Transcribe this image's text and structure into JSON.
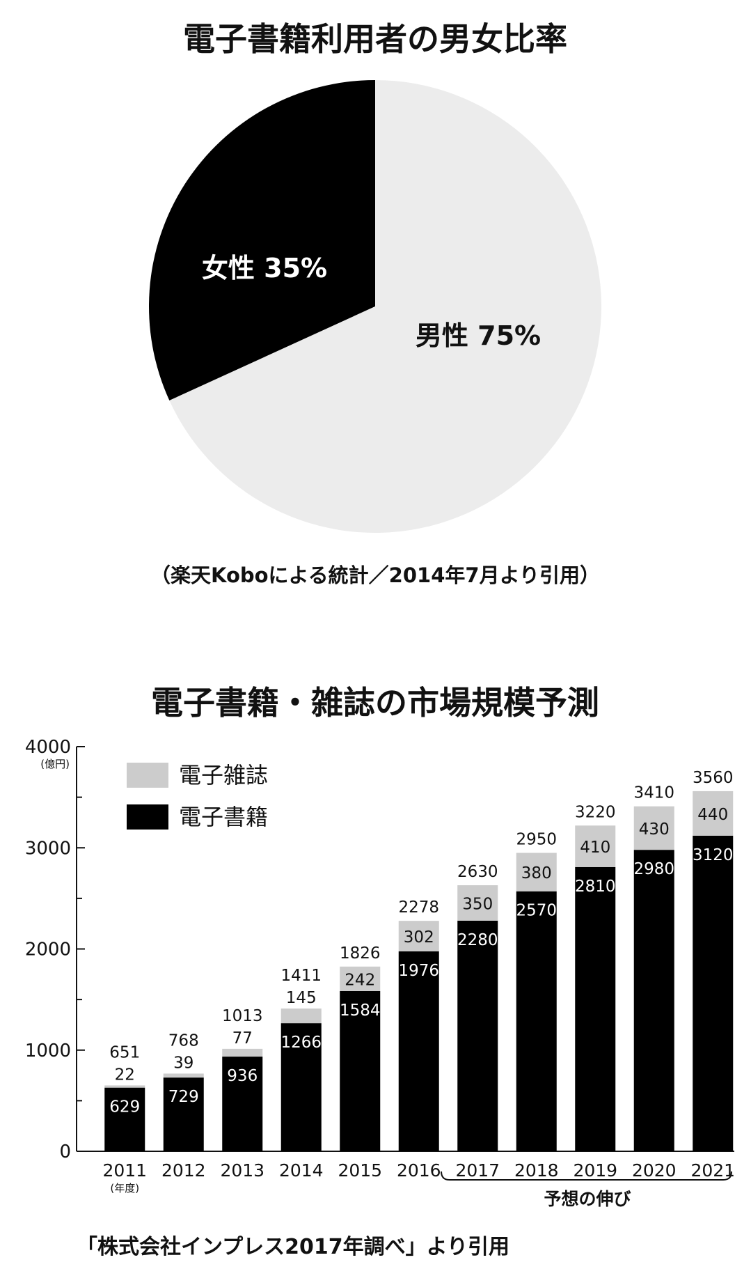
{
  "chart_data": [
    {
      "type": "pie",
      "title": "電子書籍利用者の男女比率",
      "slices": [
        {
          "name": "女性",
          "label": "女性 35%",
          "value": 35,
          "color": "#000000",
          "text_color": "#ffffff"
        },
        {
          "name": "男性",
          "label": "男性 75%",
          "value": 75,
          "color": "#ececec",
          "text_color": "#111111"
        }
      ],
      "source": "（楽天Koboによる統計／2014年7月より引用）"
    },
    {
      "type": "bar",
      "stacked": true,
      "title": "電子書籍・雑誌の市場規模予測",
      "categories": [
        "2011",
        "2012",
        "2013",
        "2014",
        "2015",
        "2016",
        "2017",
        "2018",
        "2019",
        "2020",
        "2021"
      ],
      "x_unit": "(年度)",
      "y_unit": "(億円)",
      "ylim": [
        0,
        4000
      ],
      "yticks": [
        "0",
        "1000",
        "2000",
        "3000",
        "4000"
      ],
      "series": [
        {
          "name": "電子書籍",
          "color": "#000000",
          "values": [
            629,
            729,
            936,
            1266,
            1584,
            1976,
            2280,
            2570,
            2810,
            2980,
            3120
          ]
        },
        {
          "name": "電子雑誌",
          "color": "#cccccc",
          "values": [
            22,
            39,
            77,
            145,
            242,
            302,
            350,
            380,
            410,
            430,
            440
          ]
        }
      ],
      "totals": [
        651,
        768,
        1013,
        1411,
        1826,
        2278,
        2630,
        2950,
        3220,
        3410,
        3560
      ],
      "legend": [
        "電子雑誌",
        "電子書籍"
      ],
      "forecast_label": "予想の伸び",
      "source": "「株式会社インプレス2017年調べ」より引用"
    }
  ]
}
